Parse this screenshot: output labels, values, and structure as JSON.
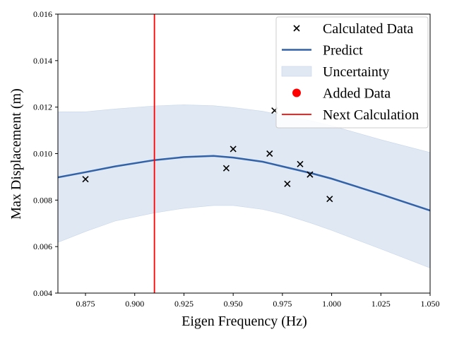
{
  "chart_data": {
    "type": "scatter",
    "title": "",
    "xlabel": "Eigen Frequency (Hz)",
    "ylabel": "Max Displacement (m)",
    "xlim": [
      0.861,
      1.05
    ],
    "ylim": [
      0.004,
      0.016
    ],
    "x_ticks": [
      0.875,
      0.9,
      0.925,
      0.95,
      0.975,
      1.0,
      1.025,
      1.05
    ],
    "x_tick_labels": [
      "0.875",
      "0.900",
      "0.925",
      "0.950",
      "0.975",
      "1.000",
      "1.025",
      "1.050"
    ],
    "y_ticks": [
      0.004,
      0.006,
      0.008,
      0.01,
      0.012,
      0.014,
      0.016
    ],
    "y_tick_labels": [
      "0.004",
      "0.006",
      "0.008",
      "0.010",
      "0.012",
      "0.014",
      "0.016"
    ],
    "grid": false,
    "legend_position": "top-right",
    "series": [
      {
        "name": "Calculated Data",
        "kind": "scatter",
        "marker": "x",
        "color": "#000000",
        "points": [
          {
            "x": 0.875,
            "y": 0.0089
          },
          {
            "x": 0.9465,
            "y": 0.00937
          },
          {
            "x": 0.95,
            "y": 0.0102
          },
          {
            "x": 0.9685,
            "y": 0.01
          },
          {
            "x": 0.971,
            "y": 0.01185
          },
          {
            "x": 0.9775,
            "y": 0.0087
          },
          {
            "x": 0.984,
            "y": 0.00955
          },
          {
            "x": 0.989,
            "y": 0.0091
          },
          {
            "x": 0.999,
            "y": 0.00805
          }
        ]
      },
      {
        "name": "Predict",
        "kind": "line",
        "color": "#3262a8",
        "x": [
          0.861,
          0.875,
          0.89,
          0.91,
          0.925,
          0.94,
          0.95,
          0.965,
          0.975,
          0.99,
          1.0,
          1.025,
          1.05
        ],
        "y": [
          0.00898,
          0.0092,
          0.00945,
          0.00972,
          0.00985,
          0.0099,
          0.00983,
          0.00965,
          0.00945,
          0.00915,
          0.00892,
          0.00825,
          0.00755
        ]
      },
      {
        "name": "Uncertainty",
        "kind": "band",
        "color": "#dfe8f3",
        "x": [
          0.861,
          0.875,
          0.89,
          0.91,
          0.925,
          0.94,
          0.95,
          0.965,
          0.975,
          0.99,
          1.0,
          1.025,
          1.05
        ],
        "upper": [
          0.0118,
          0.0118,
          0.01192,
          0.01205,
          0.0121,
          0.01206,
          0.01198,
          0.01182,
          0.01165,
          0.0114,
          0.0112,
          0.0106,
          0.01005
        ],
        "lower": [
          0.00618,
          0.00665,
          0.0071,
          0.00745,
          0.00765,
          0.00777,
          0.00777,
          0.0076,
          0.0074,
          0.007,
          0.0067,
          0.0059,
          0.00508
        ]
      },
      {
        "name": "Added Data",
        "kind": "scatter",
        "marker": "o",
        "color": "#ff0000",
        "points": []
      },
      {
        "name": "Next Calculation",
        "kind": "vline",
        "color": "#ff0000",
        "x": 0.91
      }
    ]
  }
}
